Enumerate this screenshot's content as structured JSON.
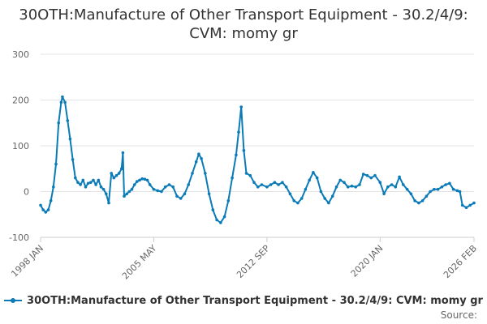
{
  "chart_data": {
    "type": "line",
    "title": "30OTH:Manufacture of Other Transport Equipment - 30.2/4/9: CVM: momy gr",
    "xlabel": "",
    "ylabel": "",
    "ylim": [
      -100,
      300
    ],
    "xlim": [
      "1998-01",
      "2026-02"
    ],
    "y_ticks": [
      "300",
      "200",
      "100",
      "0",
      "-100"
    ],
    "x_ticks": [
      {
        "label": "1998 JAN",
        "date": "1998-01"
      },
      {
        "label": "2005 MAY",
        "date": "2005-05"
      },
      {
        "label": "2012 SEP",
        "date": "2012-09"
      },
      {
        "label": "2020 JAN",
        "date": "2020-01"
      },
      {
        "label": "2026 FEB",
        "date": "2026-02"
      }
    ],
    "grid": true,
    "legend_position": "bottom",
    "series": [
      {
        "name": "30OTH:Manufacture of Other Transport Equipment - 30.2/4/9: CVM: momy gr",
        "color": "#0b7bb8",
        "points": [
          [
            "1998-01",
            -30
          ],
          [
            "1998-03",
            -40
          ],
          [
            "1998-05",
            -45
          ],
          [
            "1998-07",
            -40
          ],
          [
            "1998-09",
            -20
          ],
          [
            "1998-11",
            10
          ],
          [
            "1999-01",
            60
          ],
          [
            "1999-03",
            150
          ],
          [
            "1999-05",
            195
          ],
          [
            "1999-06",
            207
          ],
          [
            "1999-08",
            195
          ],
          [
            "1999-10",
            155
          ],
          [
            "1999-12",
            115
          ],
          [
            "2000-02",
            70
          ],
          [
            "2000-04",
            30
          ],
          [
            "2000-06",
            20
          ],
          [
            "2000-08",
            15
          ],
          [
            "2000-10",
            25
          ],
          [
            "2000-12",
            10
          ],
          [
            "2001-02",
            18
          ],
          [
            "2001-04",
            20
          ],
          [
            "2001-06",
            25
          ],
          [
            "2001-08",
            15
          ],
          [
            "2001-10",
            25
          ],
          [
            "2001-12",
            10
          ],
          [
            "2002-02",
            5
          ],
          [
            "2002-04",
            -5
          ],
          [
            "2002-06",
            -25
          ],
          [
            "2002-08",
            40
          ],
          [
            "2002-10",
            30
          ],
          [
            "2002-12",
            35
          ],
          [
            "2003-02",
            40
          ],
          [
            "2003-04",
            50
          ],
          [
            "2003-05",
            85
          ],
          [
            "2003-06",
            -10
          ],
          [
            "2003-08",
            -5
          ],
          [
            "2003-10",
            0
          ],
          [
            "2003-12",
            5
          ],
          [
            "2004-02",
            15
          ],
          [
            "2004-04",
            22
          ],
          [
            "2004-06",
            25
          ],
          [
            "2004-08",
            28
          ],
          [
            "2004-10",
            27
          ],
          [
            "2004-12",
            25
          ],
          [
            "2005-02",
            15
          ],
          [
            "2005-05",
            5
          ],
          [
            "2005-08",
            2
          ],
          [
            "2005-11",
            0
          ],
          [
            "2006-02",
            10
          ],
          [
            "2006-05",
            15
          ],
          [
            "2006-08",
            10
          ],
          [
            "2006-11",
            -10
          ],
          [
            "2007-02",
            -15
          ],
          [
            "2007-05",
            -5
          ],
          [
            "2007-08",
            15
          ],
          [
            "2007-11",
            40
          ],
          [
            "2008-02",
            65
          ],
          [
            "2008-04",
            82
          ],
          [
            "2008-06",
            72
          ],
          [
            "2008-09",
            40
          ],
          [
            "2008-12",
            -5
          ],
          [
            "2009-03",
            -40
          ],
          [
            "2009-06",
            -62
          ],
          [
            "2009-09",
            -68
          ],
          [
            "2009-12",
            -55
          ],
          [
            "2010-03",
            -20
          ],
          [
            "2010-06",
            30
          ],
          [
            "2010-09",
            80
          ],
          [
            "2010-11",
            130
          ],
          [
            "2011-01",
            185
          ],
          [
            "2011-03",
            90
          ],
          [
            "2011-05",
            40
          ],
          [
            "2011-08",
            35
          ],
          [
            "2011-11",
            20
          ],
          [
            "2012-02",
            10
          ],
          [
            "2012-05",
            15
          ],
          [
            "2012-09",
            10
          ],
          [
            "2012-12",
            15
          ],
          [
            "2013-03",
            20
          ],
          [
            "2013-06",
            15
          ],
          [
            "2013-09",
            20
          ],
          [
            "2013-12",
            10
          ],
          [
            "2014-03",
            -5
          ],
          [
            "2014-06",
            -20
          ],
          [
            "2014-09",
            -25
          ],
          [
            "2014-12",
            -15
          ],
          [
            "2015-03",
            5
          ],
          [
            "2015-06",
            25
          ],
          [
            "2015-09",
            42
          ],
          [
            "2015-12",
            30
          ],
          [
            "2016-03",
            0
          ],
          [
            "2016-06",
            -15
          ],
          [
            "2016-09",
            -25
          ],
          [
            "2016-12",
            -10
          ],
          [
            "2017-03",
            10
          ],
          [
            "2017-06",
            25
          ],
          [
            "2017-09",
            20
          ],
          [
            "2017-12",
            10
          ],
          [
            "2018-03",
            12
          ],
          [
            "2018-06",
            10
          ],
          [
            "2018-09",
            15
          ],
          [
            "2018-12",
            38
          ],
          [
            "2019-03",
            35
          ],
          [
            "2019-06",
            30
          ],
          [
            "2019-09",
            35
          ],
          [
            "2020-01",
            20
          ],
          [
            "2020-04",
            -5
          ],
          [
            "2020-07",
            10
          ],
          [
            "2020-10",
            15
          ],
          [
            "2021-01",
            10
          ],
          [
            "2021-04",
            32
          ],
          [
            "2021-07",
            15
          ],
          [
            "2021-10",
            5
          ],
          [
            "2022-01",
            -5
          ],
          [
            "2022-04",
            -20
          ],
          [
            "2022-07",
            -25
          ],
          [
            "2022-10",
            -20
          ],
          [
            "2023-01",
            -10
          ],
          [
            "2023-04",
            0
          ],
          [
            "2023-07",
            5
          ],
          [
            "2023-10",
            5
          ],
          [
            "2024-01",
            10
          ],
          [
            "2024-04",
            15
          ],
          [
            "2024-07",
            18
          ],
          [
            "2024-10",
            5
          ],
          [
            "2025-01",
            2
          ],
          [
            "2025-03",
            0
          ],
          [
            "2025-05",
            -30
          ],
          [
            "2025-08",
            -35
          ],
          [
            "2025-11",
            -30
          ],
          [
            "2026-02",
            -25
          ]
        ]
      }
    ]
  },
  "legend": {
    "label": "30OTH:Manufacture of Other Transport Equipment - 30.2/4/9: CVM: momy gr"
  },
  "source": {
    "label": "Source:"
  }
}
